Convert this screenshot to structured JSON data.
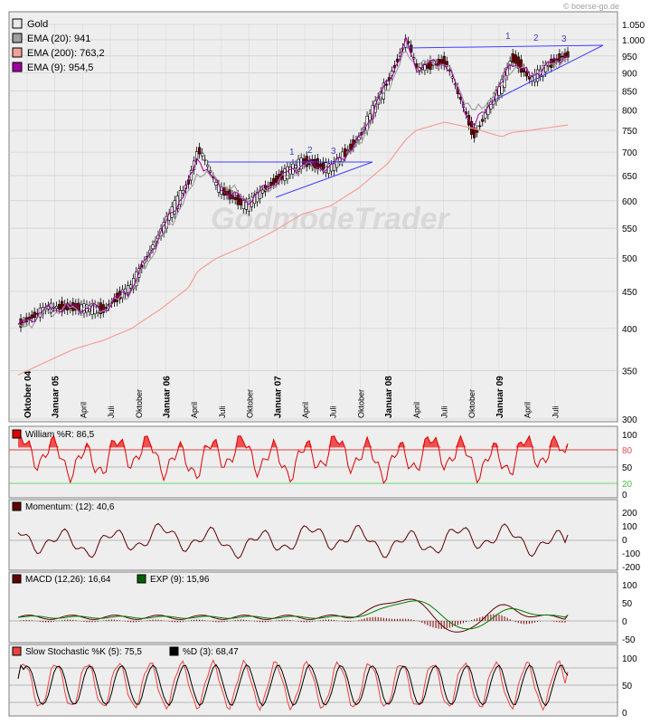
{
  "watermark": "© boerse-go.de",
  "brand": "GodmodeTrader",
  "price_panel": {
    "legend": [
      {
        "label": "Gold",
        "color": "#e8e8e8"
      },
      {
        "label": "EMA (20): 941",
        "color": "#a0a0a0"
      },
      {
        "label": "EMA (200): 763,2",
        "color": "#f4a09a"
      },
      {
        "label": "EMA (9): 954,5",
        "color": "#a000a0"
      }
    ],
    "y_ticks": [
      "1.050",
      "1.000",
      "950",
      "900",
      "850",
      "800",
      "750",
      "700",
      "650",
      "600",
      "550",
      "500",
      "450",
      "400",
      "350",
      "300"
    ],
    "x_labels": [
      {
        "t": "Oktober 04",
        "bold": true
      },
      {
        "t": "Januar 05",
        "bold": true
      },
      {
        "t": "April",
        "bold": false
      },
      {
        "t": "Juli",
        "bold": false
      },
      {
        "t": "Oktober",
        "bold": false
      },
      {
        "t": "Januar 06",
        "bold": true
      },
      {
        "t": "April",
        "bold": false
      },
      {
        "t": "Juli",
        "bold": false
      },
      {
        "t": "Oktober",
        "bold": false
      },
      {
        "t": "Januar 07",
        "bold": true
      },
      {
        "t": "April",
        "bold": false
      },
      {
        "t": "Juli",
        "bold": false
      },
      {
        "t": "Oktober",
        "bold": false
      },
      {
        "t": "Januar 08",
        "bold": true
      },
      {
        "t": "April",
        "bold": false
      },
      {
        "t": "Juli",
        "bold": false
      },
      {
        "t": "Oktober",
        "bold": false
      },
      {
        "t": "Januar 09",
        "bold": true
      },
      {
        "t": "April",
        "bold": false
      },
      {
        "t": "Juli",
        "bold": false
      }
    ],
    "annotations": [
      "1",
      "2",
      "3",
      "1",
      "2",
      "3"
    ]
  },
  "williams_panel": {
    "legend": "William %R: 86,5",
    "color": "#e00000",
    "y_ticks": [
      "100",
      "80",
      "50",
      "20",
      "0"
    ]
  },
  "momentum_panel": {
    "legend": "Momentum: (12): 40,6",
    "color": "#600000",
    "y_ticks": [
      "200",
      "100",
      "0",
      "-100",
      "-200"
    ]
  },
  "macd_panel": {
    "legend": [
      {
        "label": "MACD (12,26): 16,64",
        "color": "#600000"
      },
      {
        "label": "EXP (9): 15,96",
        "color": "#006000"
      }
    ],
    "y_ticks": [
      "100",
      "50",
      "0",
      "-50"
    ]
  },
  "stoch_panel": {
    "legend": [
      {
        "label": "Slow Stochastic %K (5): 75,5",
        "color": "#f04040"
      },
      {
        "label": "%D (3): 68,47",
        "color": "#000000"
      }
    ],
    "y_ticks": [
      "100",
      "50",
      "0"
    ]
  },
  "chart_data": {
    "type": "line",
    "title": "Gold",
    "x": [
      "2004-10",
      "2005-01",
      "2005-04",
      "2005-07",
      "2005-10",
      "2006-01",
      "2006-04",
      "2006-05",
      "2006-07",
      "2006-10",
      "2007-01",
      "2007-04",
      "2007-07",
      "2007-10",
      "2008-01",
      "2008-03",
      "2008-04",
      "2008-07",
      "2008-10",
      "2009-01",
      "2009-02",
      "2009-04",
      "2009-07",
      "2009-08"
    ],
    "series": [
      {
        "name": "Gold",
        "values": [
          405,
          428,
          428,
          425,
          460,
          545,
          640,
          710,
          625,
          590,
          640,
          680,
          665,
          735,
          880,
          1005,
          910,
          935,
          735,
          870,
          950,
          880,
          945,
          955
        ]
      },
      {
        "name": "EMA (20): 941",
        "values": [
          398,
          420,
          428,
          425,
          450,
          530,
          610,
          660,
          640,
          605,
          630,
          670,
          665,
          715,
          860,
          960,
          925,
          930,
          790,
          860,
          920,
          900,
          930,
          941
        ]
      },
      {
        "name": "EMA (200): 763,2",
        "values": [
          345,
          360,
          375,
          385,
          400,
          425,
          455,
          480,
          500,
          520,
          545,
          575,
          590,
          625,
          675,
          730,
          750,
          770,
          755,
          735,
          745,
          750,
          760,
          763.2
        ]
      },
      {
        "name": "EMA (9): 954,5",
        "values": [
          402,
          425,
          428,
          425,
          455,
          540,
          630,
          690,
          630,
          598,
          635,
          675,
          665,
          725,
          875,
          990,
          915,
          935,
          755,
          865,
          940,
          890,
          940,
          954.5
        ]
      }
    ],
    "ylim": [
      300,
      1050
    ],
    "yscale": "log",
    "grid": true,
    "indicators": {
      "williams_r": 86.5,
      "momentum_12": 40.6,
      "macd_12_26": 16.64,
      "macd_exp_9": 15.96,
      "slow_stoch_k_5": 75.5,
      "slow_stoch_d_3": 68.47
    }
  }
}
